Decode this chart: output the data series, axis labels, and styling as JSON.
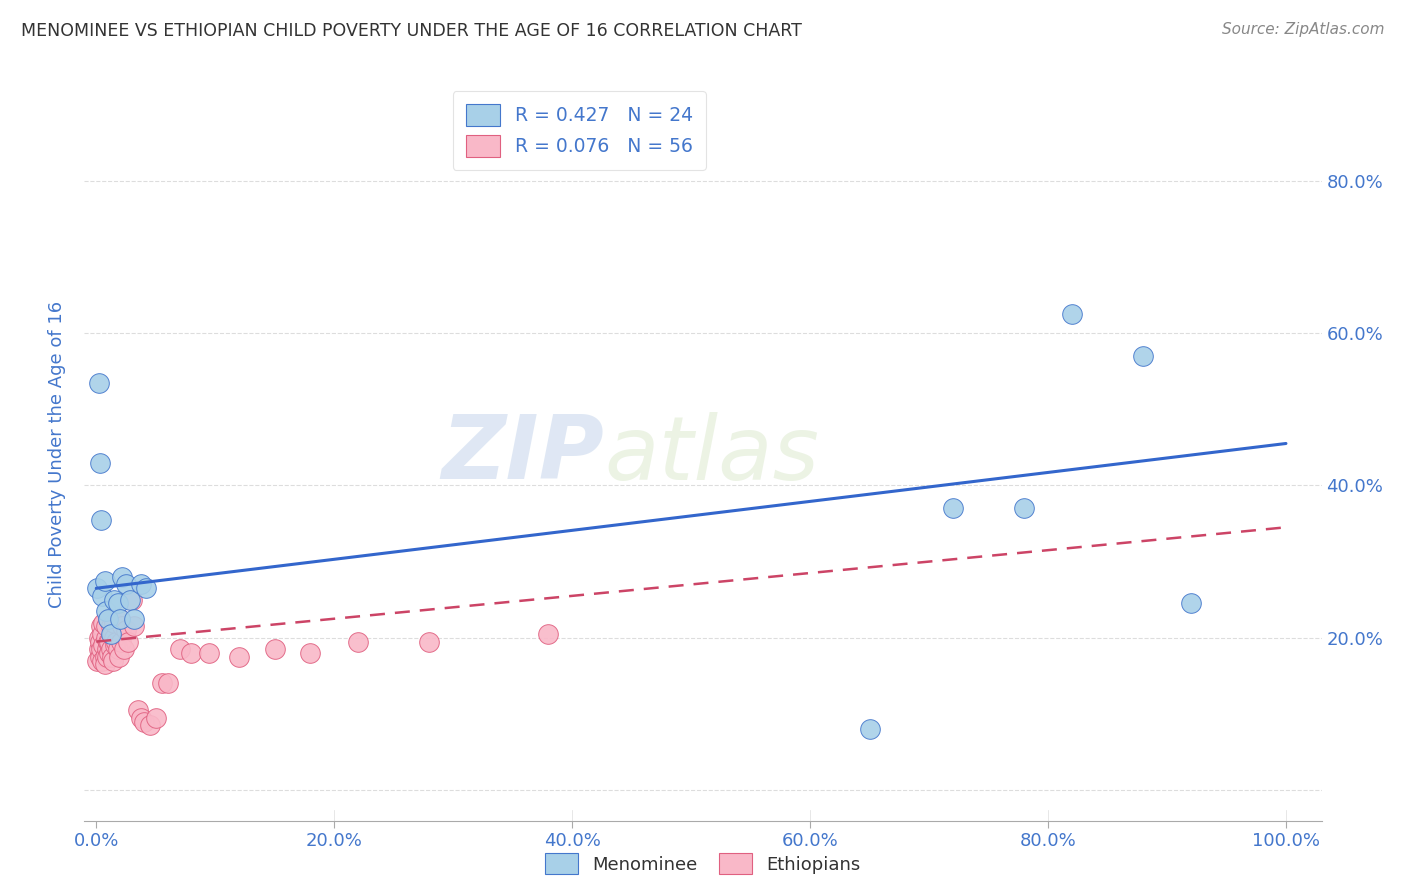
{
  "title": "MENOMINEE VS ETHIOPIAN CHILD POVERTY UNDER THE AGE OF 16 CORRELATION CHART",
  "source": "Source: ZipAtlas.com",
  "ylabel": "Child Poverty Under the Age of 16",
  "watermark_zip": "ZIP",
  "watermark_atlas": "atlas",
  "legend_line1": "R = 0.427   N = 24",
  "legend_line2": "R = 0.076   N = 56",
  "menominee_color": "#A8D0E8",
  "ethiopian_color": "#F9B8C8",
  "menominee_edge_color": "#4477CC",
  "ethiopian_edge_color": "#E06080",
  "menominee_line_color": "#3366CC",
  "ethiopian_line_color": "#CC4466",
  "background_color": "#FFFFFF",
  "grid_color": "#DDDDDD",
  "tick_color": "#4477CC",
  "title_color": "#333333",
  "source_color": "#888888",
  "x_tick_vals": [
    0.0,
    0.2,
    0.4,
    0.6,
    0.8,
    1.0
  ],
  "x_tick_labels": [
    "0.0%",
    "20.0%",
    "40.0%",
    "60.0%",
    "80.0%",
    "100.0%"
  ],
  "y_tick_vals": [
    0.0,
    0.2,
    0.4,
    0.6,
    0.8
  ],
  "y_tick_labels_right": [
    "",
    "20.0%",
    "40.0%",
    "60.0%",
    "80.0%"
  ],
  "xlim": [
    -0.01,
    1.03
  ],
  "ylim": [
    -0.04,
    0.92
  ],
  "menominee_x": [
    0.001,
    0.002,
    0.003,
    0.004,
    0.005,
    0.007,
    0.008,
    0.01,
    0.012,
    0.015,
    0.018,
    0.02,
    0.022,
    0.025,
    0.028,
    0.032,
    0.038,
    0.042,
    0.65,
    0.72,
    0.78,
    0.82,
    0.88,
    0.92
  ],
  "menominee_y": [
    0.265,
    0.535,
    0.43,
    0.355,
    0.255,
    0.275,
    0.235,
    0.225,
    0.205,
    0.25,
    0.245,
    0.225,
    0.28,
    0.27,
    0.25,
    0.225,
    0.27,
    0.265,
    0.08,
    0.37,
    0.37,
    0.625,
    0.57,
    0.245
  ],
  "ethiopian_x": [
    0.001,
    0.002,
    0.002,
    0.003,
    0.003,
    0.004,
    0.004,
    0.005,
    0.005,
    0.006,
    0.006,
    0.007,
    0.007,
    0.008,
    0.008,
    0.009,
    0.009,
    0.01,
    0.01,
    0.011,
    0.011,
    0.012,
    0.012,
    0.013,
    0.013,
    0.014,
    0.015,
    0.015,
    0.016,
    0.017,
    0.018,
    0.019,
    0.02,
    0.021,
    0.022,
    0.023,
    0.025,
    0.027,
    0.03,
    0.032,
    0.035,
    0.038,
    0.04,
    0.045,
    0.05,
    0.055,
    0.06,
    0.07,
    0.08,
    0.095,
    0.12,
    0.15,
    0.18,
    0.22,
    0.28,
    0.38
  ],
  "ethiopian_y": [
    0.17,
    0.185,
    0.2,
    0.175,
    0.195,
    0.215,
    0.185,
    0.17,
    0.205,
    0.19,
    0.22,
    0.175,
    0.165,
    0.2,
    0.215,
    0.185,
    0.175,
    0.195,
    0.225,
    0.18,
    0.195,
    0.215,
    0.185,
    0.175,
    0.205,
    0.17,
    0.2,
    0.22,
    0.19,
    0.195,
    0.185,
    0.175,
    0.225,
    0.195,
    0.215,
    0.185,
    0.21,
    0.195,
    0.25,
    0.215,
    0.105,
    0.095,
    0.09,
    0.085,
    0.095,
    0.14,
    0.14,
    0.185,
    0.18,
    0.18,
    0.175,
    0.185,
    0.18,
    0.195,
    0.195,
    0.205
  ],
  "men_line_x": [
    0.0,
    1.0
  ],
  "men_line_y": [
    0.265,
    0.455
  ],
  "eth_line_x": [
    0.0,
    1.0
  ],
  "eth_line_y": [
    0.195,
    0.345
  ]
}
